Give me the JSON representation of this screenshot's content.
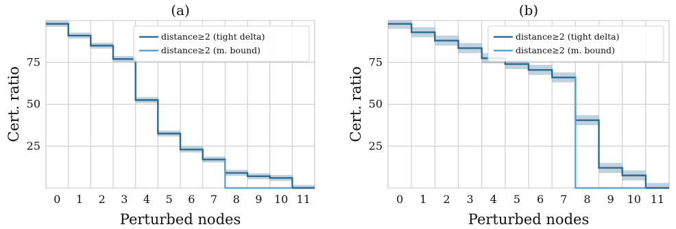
{
  "chart_data": [
    {
      "type": "line",
      "title": "(a)",
      "xlabel": "Perturbed nodes",
      "ylabel": "Cert. ratio",
      "x": [
        0,
        1,
        2,
        3,
        4,
        5,
        6,
        7,
        8,
        9,
        10,
        11
      ],
      "xticks": [
        "0",
        "1",
        "2",
        "3",
        "4",
        "5",
        "6",
        "7",
        "8",
        "9",
        "10",
        "11"
      ],
      "yticks": [
        25,
        50,
        75
      ],
      "ylim": [
        0,
        100
      ],
      "grid": true,
      "legend_position": "top-right",
      "series": [
        {
          "name": "distance≥2 (tight delta)",
          "color": "#2e6a92",
          "step": "mid",
          "values": [
            98,
            91,
            85,
            77,
            52.5,
            32.5,
            23,
            17,
            9,
            7,
            6,
            0
          ],
          "band_halfwidth": 1.8
        },
        {
          "name": "distance≥2 (m. bound)",
          "color": "#5ba3d0",
          "step": "mid",
          "values": [
            98,
            91,
            85,
            77,
            52.5,
            32.5,
            23,
            17,
            0,
            0,
            0,
            0
          ]
        }
      ]
    },
    {
      "type": "line",
      "title": "(b)",
      "xlabel": "Perturbed nodes",
      "ylabel": "Cert. ratio",
      "x": [
        0,
        1,
        2,
        3,
        4,
        5,
        6,
        7,
        8,
        9,
        10,
        11
      ],
      "xticks": [
        "0",
        "1",
        "2",
        "3",
        "4",
        "5",
        "6",
        "7",
        "8",
        "9",
        "10",
        "11"
      ],
      "yticks": [
        25,
        50,
        75
      ],
      "ylim": [
        0,
        100
      ],
      "grid": true,
      "legend_position": "top-right",
      "series": [
        {
          "name": "distance≥2 (tight delta)",
          "color": "#2e6a92",
          "step": "mid",
          "values": [
            98,
            93,
            88,
            83.5,
            77.5,
            74,
            70.5,
            66,
            40.5,
            12,
            7.5,
            0
          ],
          "band_halfwidth": 3
        },
        {
          "name": "distance≥2 (m. bound)",
          "color": "#5ba3d0",
          "step": "mid",
          "values": [
            98,
            93,
            88,
            83.5,
            77.5,
            74,
            70.5,
            66,
            0,
            0,
            0,
            0
          ]
        }
      ]
    }
  ]
}
